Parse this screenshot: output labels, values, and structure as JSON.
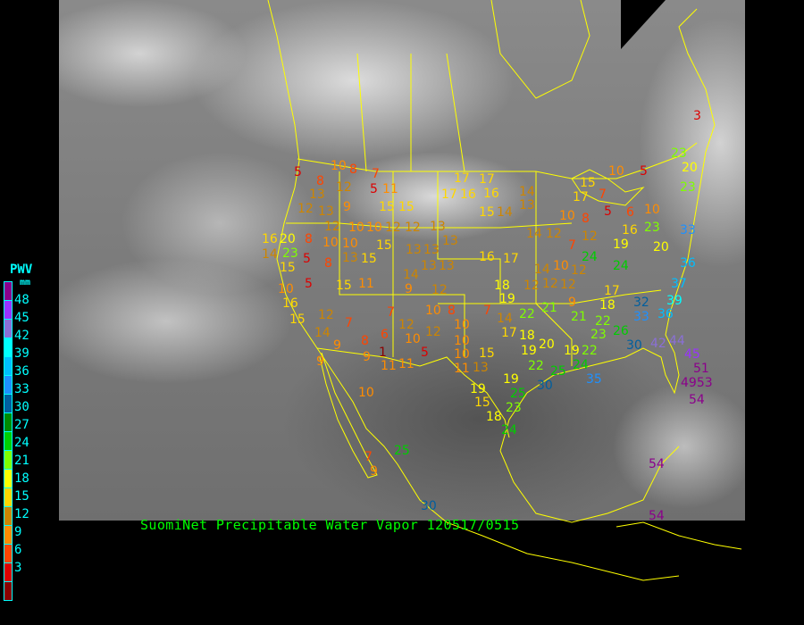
{
  "caption": "SuomiNet Precipitable Water Vapor 120517/0515",
  "legend": {
    "title": "PWV",
    "unit": "mm",
    "bins": [
      {
        "label": "48",
        "color": "#8b008b"
      },
      {
        "label": "45",
        "color": "#9933ff"
      },
      {
        "label": "42",
        "color": "#8a6fd6"
      },
      {
        "label": "39",
        "color": "#00ffff"
      },
      {
        "label": "36",
        "color": "#00bfff"
      },
      {
        "label": "33",
        "color": "#1e90ff"
      },
      {
        "label": "30",
        "color": "#005f9f"
      },
      {
        "label": "27",
        "color": "#008b00"
      },
      {
        "label": "24",
        "color": "#00cd00"
      },
      {
        "label": "21",
        "color": "#7fff00"
      },
      {
        "label": "18",
        "color": "#ffff00"
      },
      {
        "label": "15",
        "color": "#ffd700"
      },
      {
        "label": "12",
        "color": "#cd8500"
      },
      {
        "label": "9",
        "color": "#ff8c00"
      },
      {
        "label": "6",
        "color": "#ff4500"
      },
      {
        "label": "3",
        "color": "#dd0000"
      },
      {
        "label": "",
        "color": "#8b0000"
      }
    ]
  },
  "map": {
    "background": "infrared satellite imagery",
    "outline_color": "#ffff00",
    "station_values": [
      5,
      8,
      10,
      8,
      7,
      12,
      5,
      11,
      13,
      9,
      12,
      13,
      12,
      10,
      10,
      12,
      12,
      13,
      15,
      15,
      17,
      17,
      16,
      16,
      17,
      14,
      15,
      14,
      13,
      14,
      12,
      16,
      20,
      8,
      10,
      10,
      15,
      13,
      13,
      13,
      14,
      23,
      5,
      8,
      15,
      13,
      15,
      14,
      13,
      13,
      16,
      17,
      15,
      11,
      5,
      10,
      16,
      9,
      12,
      15,
      12,
      7,
      14,
      9,
      8,
      6,
      7,
      12,
      10,
      12,
      10,
      8,
      10,
      10,
      7,
      14,
      19,
      18,
      12,
      12,
      12,
      12,
      14,
      10,
      24,
      24,
      7,
      12,
      8,
      10,
      5,
      6,
      10,
      23,
      19,
      16,
      20,
      33,
      36,
      37,
      39,
      36,
      32,
      33,
      17,
      18,
      21,
      21,
      22,
      17,
      18,
      20,
      19,
      15,
      10,
      13,
      11,
      19,
      22,
      22,
      26,
      30,
      42,
      44,
      45,
      51,
      4953,
      54,
      54,
      54,
      22,
      25,
      24,
      35,
      30,
      25,
      23,
      18,
      24,
      19,
      19,
      11,
      11,
      5,
      1,
      9,
      9,
      10,
      25,
      7,
      9,
      30,
      15,
      9,
      23,
      23,
      20,
      23,
      3,
      10,
      5,
      15,
      7,
      17
    ]
  }
}
